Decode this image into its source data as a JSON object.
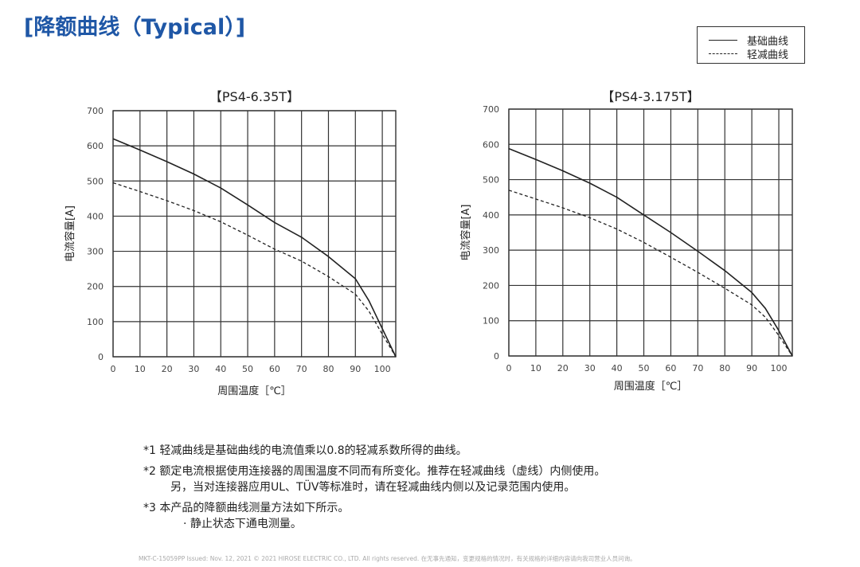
{
  "title": "[降额曲线（Typical）]",
  "legend": {
    "items": [
      {
        "label": "基础曲线",
        "style": "solid"
      },
      {
        "label": "轻减曲线",
        "style": "dashed"
      }
    ]
  },
  "chart_data": [
    {
      "type": "line",
      "title": "【PS4-6.35T】",
      "xlabel": "周围温度［℃］",
      "ylabel": "电流容量[A]",
      "xlim": [
        0,
        105
      ],
      "ylim": [
        0,
        700
      ],
      "xticks": [
        0,
        10,
        20,
        30,
        40,
        50,
        60,
        70,
        80,
        90,
        100
      ],
      "yticks": [
        0,
        100,
        200,
        300,
        400,
        500,
        600,
        700
      ],
      "grid": true,
      "x": [
        0,
        10,
        20,
        30,
        40,
        50,
        60,
        70,
        80,
        90,
        95,
        100,
        105
      ],
      "series": [
        {
          "name": "基础曲线",
          "style": "solid",
          "values": [
            620,
            588,
            555,
            520,
            480,
            432,
            382,
            340,
            285,
            222,
            160,
            80,
            0
          ]
        },
        {
          "name": "轻减曲线",
          "style": "dashed",
          "values": [
            495,
            470,
            444,
            416,
            384,
            346,
            306,
            272,
            228,
            178,
            130,
            64,
            0
          ]
        }
      ]
    },
    {
      "type": "line",
      "title": "【PS4-3.175T】",
      "xlabel": "周围温度［℃］",
      "ylabel": "电流容量[A]",
      "xlim": [
        0,
        105
      ],
      "ylim": [
        0,
        700
      ],
      "xticks": [
        0,
        10,
        20,
        30,
        40,
        50,
        60,
        70,
        80,
        90,
        100
      ],
      "yticks": [
        0,
        100,
        200,
        300,
        400,
        500,
        600,
        700
      ],
      "grid": true,
      "x": [
        0,
        10,
        20,
        30,
        40,
        50,
        60,
        70,
        80,
        90,
        95,
        100,
        105
      ],
      "series": [
        {
          "name": "基础曲线",
          "style": "solid",
          "values": [
            588,
            557,
            525,
            490,
            450,
            400,
            350,
            297,
            242,
            180,
            135,
            72,
            0
          ]
        },
        {
          "name": "轻减曲线",
          "style": "dashed",
          "values": [
            470,
            445,
            420,
            392,
            360,
            322,
            280,
            237,
            192,
            145,
            110,
            58,
            0
          ]
        }
      ]
    }
  ],
  "notes": {
    "n1": "*1 轻减曲线是基础曲线的电流值乘以0.8的轻减系数所得的曲线。",
    "n2": "*2 额定电流根据使用连接器的周围温度不同而有所变化。推荐在轻减曲线（虚线）内侧使用。",
    "n2b": "另，当对连接器应用UL、TÜV等标准时，请在轻减曲线内侧以及记录范围内使用。",
    "n3": "*3 本产品的降额曲线测量方法如下所示。",
    "n3b": "· 静止状态下通电测量。"
  },
  "footer": "MKT-C-15059PP  Issued: Nov. 12, 2021  © 2021 HIROSE ELECTRIC CO., LTD. All rights reserved.  在无事先通知，变更规格的情况时，有关规格的详细内容请向我司营业人员问询。"
}
